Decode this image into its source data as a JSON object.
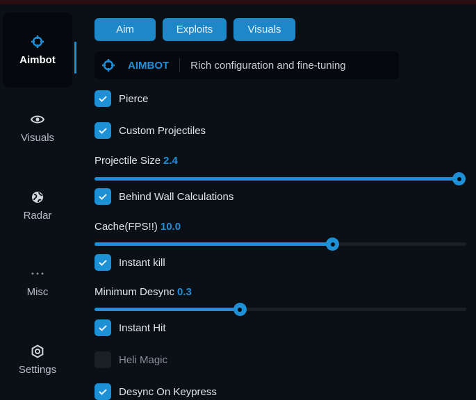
{
  "sidebar": {
    "items": [
      {
        "label": "Aimbot",
        "icon": "crosshair-icon",
        "active": true
      },
      {
        "label": "Visuals",
        "icon": "eye-icon"
      },
      {
        "label": "Radar",
        "icon": "globe-icon"
      },
      {
        "label": "Misc",
        "icon": "ellipsis-icon"
      },
      {
        "label": "Settings",
        "icon": "gear-icon"
      }
    ]
  },
  "tabs": [
    "Aim",
    "Exploits",
    "Visuals"
  ],
  "header": {
    "title": "AIMBOT",
    "description": "Rich configuration and fine-tuning"
  },
  "options": {
    "pierce": {
      "label": "Pierce",
      "checked": true
    },
    "custom_projectiles": {
      "label": "Custom Projectiles",
      "checked": true
    },
    "projectile_size": {
      "label": "Projectile Size",
      "value": "2.4",
      "fill": 0.98
    },
    "behind_wall": {
      "label": "Behind Wall Calculations",
      "checked": true
    },
    "cache": {
      "label": "Cache(FPS!!)",
      "value": "10.0",
      "fill": 0.64
    },
    "instant_kill": {
      "label": "Instant kill",
      "checked": true
    },
    "min_desync": {
      "label": "Minimum Desync",
      "value": "0.3",
      "fill": 0.39
    },
    "instant_hit": {
      "label": "Instant Hit",
      "checked": true
    },
    "heli_magic": {
      "label": "Heli Magic",
      "checked": false
    },
    "desync_keypress": {
      "label": "Desync On Keypress",
      "checked": true
    }
  },
  "colors": {
    "accent": "#1e90d6",
    "background": "#0b0f16"
  }
}
